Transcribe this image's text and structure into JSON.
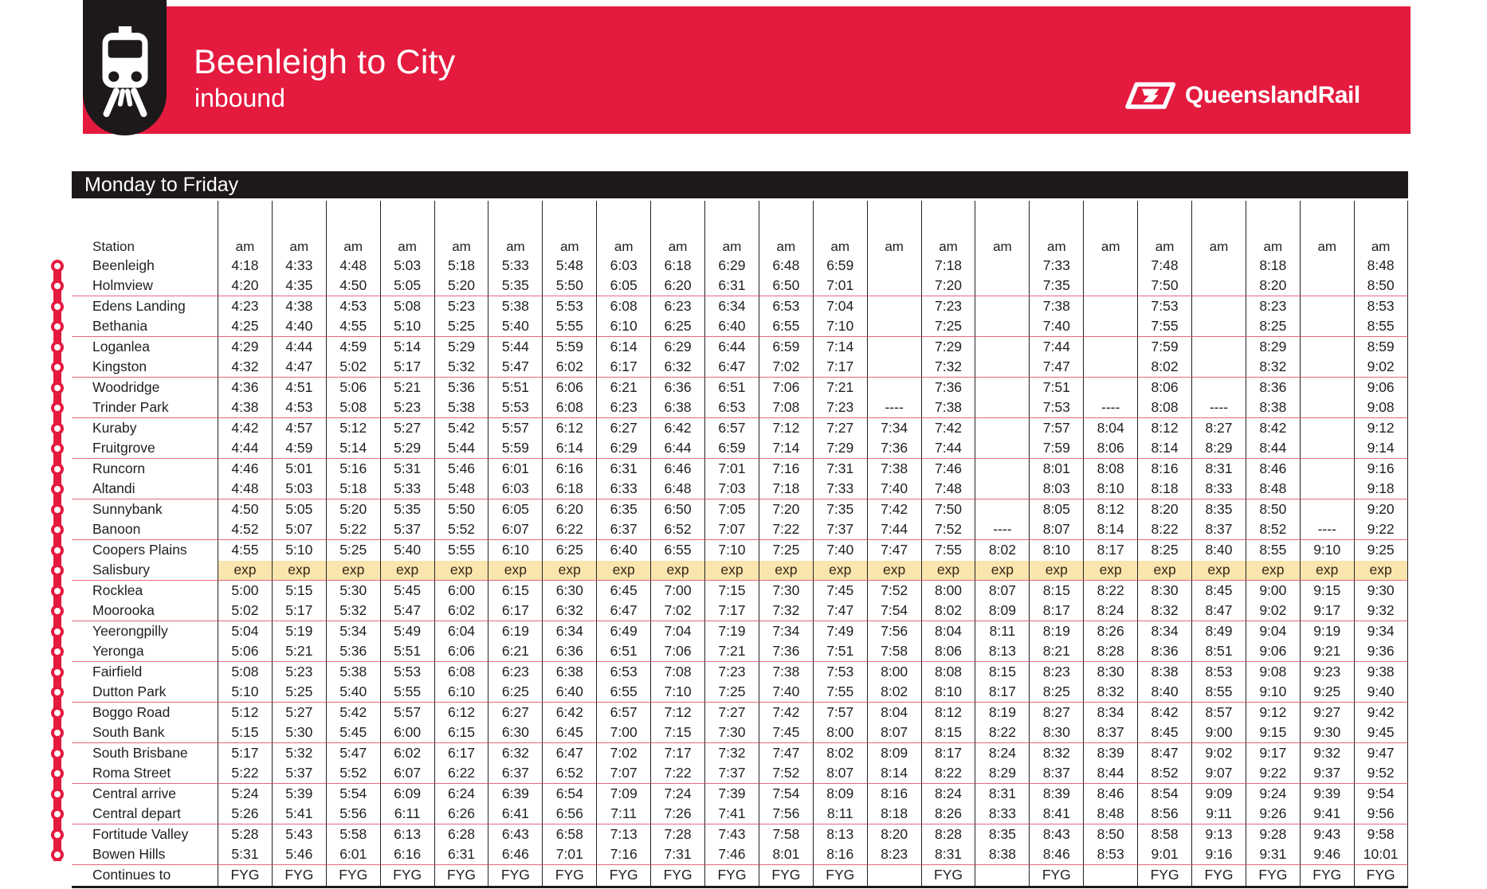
{
  "header": {
    "title": "Beenleigh to City",
    "subtitle": "inbound",
    "brand": "QueenslandRail"
  },
  "day_band": {
    "label": "Monday to Friday"
  },
  "colors": {
    "accent_red": "#e41a3e",
    "band_black": "#1d191a",
    "express_highlight": "#fae5af",
    "pair_separator": "#e46a7e"
  },
  "table": {
    "station_header": "Station",
    "column_headers": [
      "am",
      "am",
      "am",
      "am",
      "am",
      "am",
      "am",
      "am",
      "am",
      "am",
      "am",
      "am",
      "am",
      "am",
      "am",
      "am",
      "am",
      "am",
      "am",
      "am",
      "am",
      "am"
    ],
    "rows": [
      {
        "station": "Beenleigh",
        "times": [
          "4:18",
          "4:33",
          "4:48",
          "5:03",
          "5:18",
          "5:33",
          "5:48",
          "6:03",
          "6:18",
          "6:29",
          "6:48",
          "6:59",
          "",
          "7:18",
          "",
          "7:33",
          "",
          "7:48",
          "",
          "8:18",
          "",
          "8:48"
        ]
      },
      {
        "station": "Holmview",
        "times": [
          "4:20",
          "4:35",
          "4:50",
          "5:05",
          "5:20",
          "5:35",
          "5:50",
          "6:05",
          "6:20",
          "6:31",
          "6:50",
          "7:01",
          "",
          "7:20",
          "",
          "7:35",
          "",
          "7:50",
          "",
          "8:20",
          "",
          "8:50"
        ]
      },
      {
        "station": "Edens Landing",
        "times": [
          "4:23",
          "4:38",
          "4:53",
          "5:08",
          "5:23",
          "5:38",
          "5:53",
          "6:08",
          "6:23",
          "6:34",
          "6:53",
          "7:04",
          "",
          "7:23",
          "",
          "7:38",
          "",
          "7:53",
          "",
          "8:23",
          "",
          "8:53"
        ]
      },
      {
        "station": "Bethania",
        "times": [
          "4:25",
          "4:40",
          "4:55",
          "5:10",
          "5:25",
          "5:40",
          "5:55",
          "6:10",
          "6:25",
          "6:40",
          "6:55",
          "7:10",
          "",
          "7:25",
          "",
          "7:40",
          "",
          "7:55",
          "",
          "8:25",
          "",
          "8:55"
        ]
      },
      {
        "station": "Loganlea",
        "times": [
          "4:29",
          "4:44",
          "4:59",
          "5:14",
          "5:29",
          "5:44",
          "5:59",
          "6:14",
          "6:29",
          "6:44",
          "6:59",
          "7:14",
          "",
          "7:29",
          "",
          "7:44",
          "",
          "7:59",
          "",
          "8:29",
          "",
          "8:59"
        ]
      },
      {
        "station": "Kingston",
        "times": [
          "4:32",
          "4:47",
          "5:02",
          "5:17",
          "5:32",
          "5:47",
          "6:02",
          "6:17",
          "6:32",
          "6:47",
          "7:02",
          "7:17",
          "",
          "7:32",
          "",
          "7:47",
          "",
          "8:02",
          "",
          "8:32",
          "",
          "9:02"
        ]
      },
      {
        "station": "Woodridge",
        "times": [
          "4:36",
          "4:51",
          "5:06",
          "5:21",
          "5:36",
          "5:51",
          "6:06",
          "6:21",
          "6:36",
          "6:51",
          "7:06",
          "7:21",
          "",
          "7:36",
          "",
          "7:51",
          "",
          "8:06",
          "",
          "8:36",
          "",
          "9:06"
        ]
      },
      {
        "station": "Trinder Park",
        "times": [
          "4:38",
          "4:53",
          "5:08",
          "5:23",
          "5:38",
          "5:53",
          "6:08",
          "6:23",
          "6:38",
          "6:53",
          "7:08",
          "7:23",
          "----",
          "7:38",
          "",
          "7:53",
          "----",
          "8:08",
          "----",
          "8:38",
          "",
          "9:08"
        ]
      },
      {
        "station": "Kuraby",
        "times": [
          "4:42",
          "4:57",
          "5:12",
          "5:27",
          "5:42",
          "5:57",
          "6:12",
          "6:27",
          "6:42",
          "6:57",
          "7:12",
          "7:27",
          "7:34",
          "7:42",
          "",
          "7:57",
          "8:04",
          "8:12",
          "8:27",
          "8:42",
          "",
          "9:12"
        ]
      },
      {
        "station": "Fruitgrove",
        "times": [
          "4:44",
          "4:59",
          "5:14",
          "5:29",
          "5:44",
          "5:59",
          "6:14",
          "6:29",
          "6:44",
          "6:59",
          "7:14",
          "7:29",
          "7:36",
          "7:44",
          "",
          "7:59",
          "8:06",
          "8:14",
          "8:29",
          "8:44",
          "",
          "9:14"
        ]
      },
      {
        "station": "Runcorn",
        "times": [
          "4:46",
          "5:01",
          "5:16",
          "5:31",
          "5:46",
          "6:01",
          "6:16",
          "6:31",
          "6:46",
          "7:01",
          "7:16",
          "7:31",
          "7:38",
          "7:46",
          "",
          "8:01",
          "8:08",
          "8:16",
          "8:31",
          "8:46",
          "",
          "9:16"
        ]
      },
      {
        "station": "Altandi",
        "times": [
          "4:48",
          "5:03",
          "5:18",
          "5:33",
          "5:48",
          "6:03",
          "6:18",
          "6:33",
          "6:48",
          "7:03",
          "7:18",
          "7:33",
          "7:40",
          "7:48",
          "",
          "8:03",
          "8:10",
          "8:18",
          "8:33",
          "8:48",
          "",
          "9:18"
        ]
      },
      {
        "station": "Sunnybank",
        "times": [
          "4:50",
          "5:05",
          "5:20",
          "5:35",
          "5:50",
          "6:05",
          "6:20",
          "6:35",
          "6:50",
          "7:05",
          "7:20",
          "7:35",
          "7:42",
          "7:50",
          "",
          "8:05",
          "8:12",
          "8:20",
          "8:35",
          "8:50",
          "",
          "9:20"
        ]
      },
      {
        "station": "Banoon",
        "times": [
          "4:52",
          "5:07",
          "5:22",
          "5:37",
          "5:52",
          "6:07",
          "6:22",
          "6:37",
          "6:52",
          "7:07",
          "7:22",
          "7:37",
          "7:44",
          "7:52",
          "----",
          "8:07",
          "8:14",
          "8:22",
          "8:37",
          "8:52",
          "----",
          "9:22"
        ]
      },
      {
        "station": "Coopers Plains",
        "times": [
          "4:55",
          "5:10",
          "5:25",
          "5:40",
          "5:55",
          "6:10",
          "6:25",
          "6:40",
          "6:55",
          "7:10",
          "7:25",
          "7:40",
          "7:47",
          "7:55",
          "8:02",
          "8:10",
          "8:17",
          "8:25",
          "8:40",
          "8:55",
          "9:10",
          "9:25"
        ]
      },
      {
        "station": "Salisbury",
        "highlight": true,
        "times": [
          "exp",
          "exp",
          "exp",
          "exp",
          "exp",
          "exp",
          "exp",
          "exp",
          "exp",
          "exp",
          "exp",
          "exp",
          "exp",
          "exp",
          "exp",
          "exp",
          "exp",
          "exp",
          "exp",
          "exp",
          "exp",
          "exp"
        ]
      },
      {
        "station": "Rocklea",
        "times": [
          "5:00",
          "5:15",
          "5:30",
          "5:45",
          "6:00",
          "6:15",
          "6:30",
          "6:45",
          "7:00",
          "7:15",
          "7:30",
          "7:45",
          "7:52",
          "8:00",
          "8:07",
          "8:15",
          "8:22",
          "8:30",
          "8:45",
          "9:00",
          "9:15",
          "9:30"
        ]
      },
      {
        "station": "Moorooka",
        "times": [
          "5:02",
          "5:17",
          "5:32",
          "5:47",
          "6:02",
          "6:17",
          "6:32",
          "6:47",
          "7:02",
          "7:17",
          "7:32",
          "7:47",
          "7:54",
          "8:02",
          "8:09",
          "8:17",
          "8:24",
          "8:32",
          "8:47",
          "9:02",
          "9:17",
          "9:32"
        ]
      },
      {
        "station": "Yeerongpilly",
        "times": [
          "5:04",
          "5:19",
          "5:34",
          "5:49",
          "6:04",
          "6:19",
          "6:34",
          "6:49",
          "7:04",
          "7:19",
          "7:34",
          "7:49",
          "7:56",
          "8:04",
          "8:11",
          "8:19",
          "8:26",
          "8:34",
          "8:49",
          "9:04",
          "9:19",
          "9:34"
        ]
      },
      {
        "station": "Yeronga",
        "times": [
          "5:06",
          "5:21",
          "5:36",
          "5:51",
          "6:06",
          "6:21",
          "6:36",
          "6:51",
          "7:06",
          "7:21",
          "7:36",
          "7:51",
          "7:58",
          "8:06",
          "8:13",
          "8:21",
          "8:28",
          "8:36",
          "8:51",
          "9:06",
          "9:21",
          "9:36"
        ]
      },
      {
        "station": "Fairfield",
        "times": [
          "5:08",
          "5:23",
          "5:38",
          "5:53",
          "6:08",
          "6:23",
          "6:38",
          "6:53",
          "7:08",
          "7:23",
          "7:38",
          "7:53",
          "8:00",
          "8:08",
          "8:15",
          "8:23",
          "8:30",
          "8:38",
          "8:53",
          "9:08",
          "9:23",
          "9:38"
        ]
      },
      {
        "station": "Dutton Park",
        "times": [
          "5:10",
          "5:25",
          "5:40",
          "5:55",
          "6:10",
          "6:25",
          "6:40",
          "6:55",
          "7:10",
          "7:25",
          "7:40",
          "7:55",
          "8:02",
          "8:10",
          "8:17",
          "8:25",
          "8:32",
          "8:40",
          "8:55",
          "9:10",
          "9:25",
          "9:40"
        ]
      },
      {
        "station": "Boggo Road",
        "times": [
          "5:12",
          "5:27",
          "5:42",
          "5:57",
          "6:12",
          "6:27",
          "6:42",
          "6:57",
          "7:12",
          "7:27",
          "7:42",
          "7:57",
          "8:04",
          "8:12",
          "8:19",
          "8:27",
          "8:34",
          "8:42",
          "8:57",
          "9:12",
          "9:27",
          "9:42"
        ]
      },
      {
        "station": "South Bank",
        "times": [
          "5:15",
          "5:30",
          "5:45",
          "6:00",
          "6:15",
          "6:30",
          "6:45",
          "7:00",
          "7:15",
          "7:30",
          "7:45",
          "8:00",
          "8:07",
          "8:15",
          "8:22",
          "8:30",
          "8:37",
          "8:45",
          "9:00",
          "9:15",
          "9:30",
          "9:45"
        ]
      },
      {
        "station": "South Brisbane",
        "times": [
          "5:17",
          "5:32",
          "5:47",
          "6:02",
          "6:17",
          "6:32",
          "6:47",
          "7:02",
          "7:17",
          "7:32",
          "7:47",
          "8:02",
          "8:09",
          "8:17",
          "8:24",
          "8:32",
          "8:39",
          "8:47",
          "9:02",
          "9:17",
          "9:32",
          "9:47"
        ]
      },
      {
        "station": "Roma Street",
        "times": [
          "5:22",
          "5:37",
          "5:52",
          "6:07",
          "6:22",
          "6:37",
          "6:52",
          "7:07",
          "7:22",
          "7:37",
          "7:52",
          "8:07",
          "8:14",
          "8:22",
          "8:29",
          "8:37",
          "8:44",
          "8:52",
          "9:07",
          "9:22",
          "9:37",
          "9:52"
        ]
      },
      {
        "station": "Central arrive",
        "times": [
          "5:24",
          "5:39",
          "5:54",
          "6:09",
          "6:24",
          "6:39",
          "6:54",
          "7:09",
          "7:24",
          "7:39",
          "7:54",
          "8:09",
          "8:16",
          "8:24",
          "8:31",
          "8:39",
          "8:46",
          "8:54",
          "9:09",
          "9:24",
          "9:39",
          "9:54"
        ]
      },
      {
        "station": "Central depart",
        "times": [
          "5:26",
          "5:41",
          "5:56",
          "6:11",
          "6:26",
          "6:41",
          "6:56",
          "7:11",
          "7:26",
          "7:41",
          "7:56",
          "8:11",
          "8:18",
          "8:26",
          "8:33",
          "8:41",
          "8:48",
          "8:56",
          "9:11",
          "9:26",
          "9:41",
          "9:56"
        ]
      },
      {
        "station": "Fortitude Valley",
        "times": [
          "5:28",
          "5:43",
          "5:58",
          "6:13",
          "6:28",
          "6:43",
          "6:58",
          "7:13",
          "7:28",
          "7:43",
          "7:58",
          "8:13",
          "8:20",
          "8:28",
          "8:35",
          "8:43",
          "8:50",
          "8:58",
          "9:13",
          "9:28",
          "9:43",
          "9:58"
        ]
      },
      {
        "station": "Bowen Hills",
        "times": [
          "5:31",
          "5:46",
          "6:01",
          "6:16",
          "6:31",
          "6:46",
          "7:01",
          "7:16",
          "7:31",
          "7:46",
          "8:01",
          "8:16",
          "8:23",
          "8:31",
          "8:38",
          "8:46",
          "8:53",
          "9:01",
          "9:16",
          "9:31",
          "9:46",
          "10:01"
        ]
      },
      {
        "station": "Continues to",
        "footer": true,
        "times": [
          "FYG",
          "FYG",
          "FYG",
          "FYG",
          "FYG",
          "FYG",
          "FYG",
          "FYG",
          "FYG",
          "FYG",
          "FYG",
          "FYG",
          "",
          "FYG",
          "",
          "FYG",
          "",
          "FYG",
          "FYG",
          "FYG",
          "FYG",
          "FYG"
        ]
      }
    ]
  }
}
